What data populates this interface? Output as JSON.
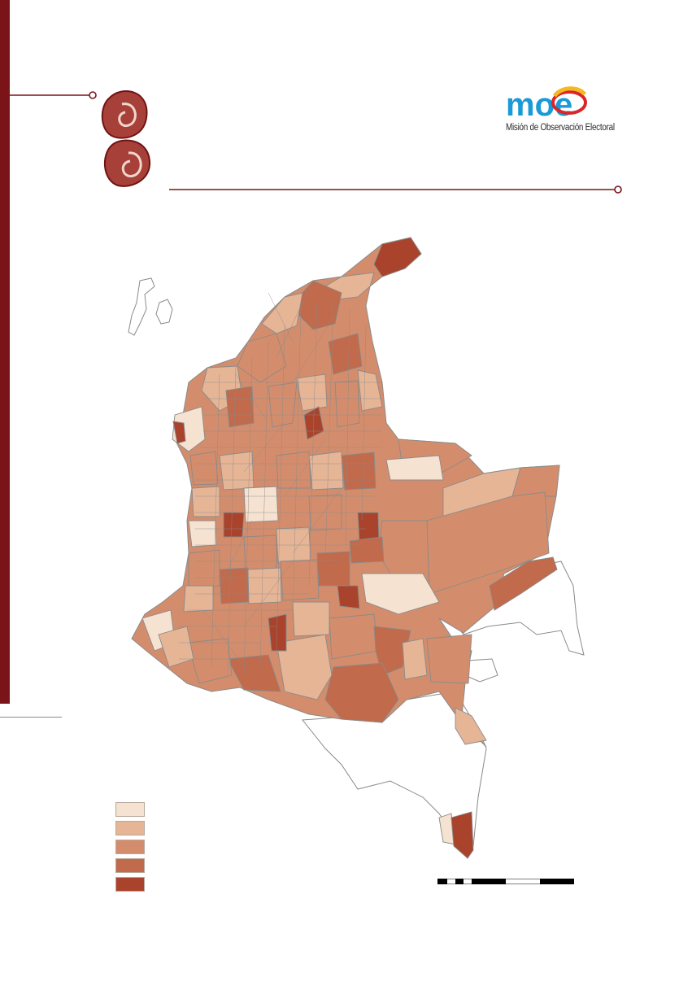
{
  "logo": {
    "wordmark": "moe",
    "caption": "Misión de Observación Electoral",
    "colors": {
      "text_blue": "#1a9ad6",
      "ring_red": "#d8262a",
      "ring_yellow": "#f5b91e"
    }
  },
  "theme": {
    "accent": "#7a1419",
    "ornament_fill": "#a8403a",
    "ornament_stroke": "#6e1414"
  },
  "legend": {
    "items": [
      {
        "color": "#f5e2d0"
      },
      {
        "color": "#e6b596"
      },
      {
        "color": "#d48d6c"
      },
      {
        "color": "#c16a4c"
      },
      {
        "color": "#a9432b"
      }
    ]
  },
  "map": {
    "subject": "Colombia municipalities choropleth",
    "palette": [
      "#f5e2d0",
      "#e6b596",
      "#d48d6c",
      "#c16a4c",
      "#a9432b"
    ],
    "border_color": "#8a8a8a"
  }
}
